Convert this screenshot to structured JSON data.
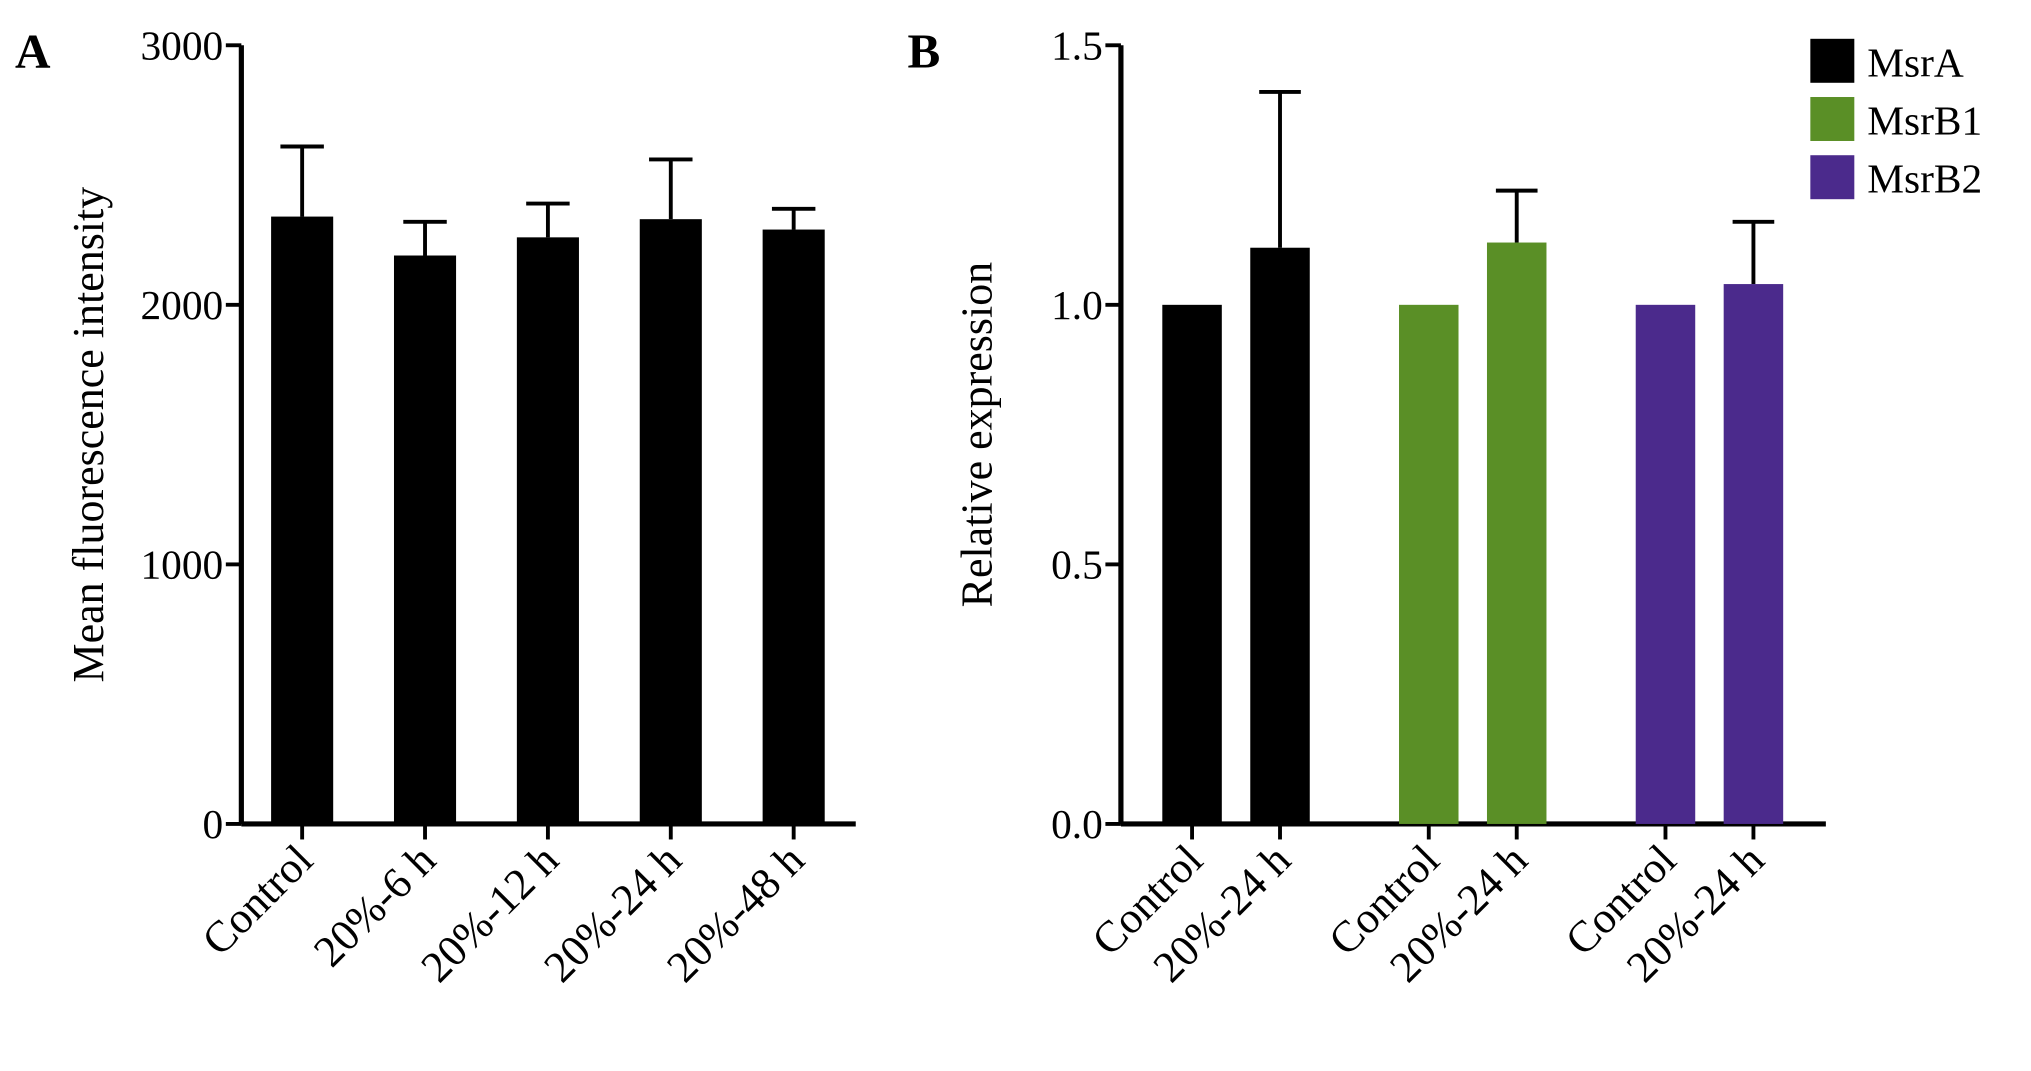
{
  "chart_data": [
    {
      "type": "bar",
      "panel": "A",
      "ylabel": "Mean fluorescence intensity",
      "categories": [
        "Control",
        "20%-6 h",
        "20%-12 h",
        "20%-24 h",
        "20%-48 h"
      ],
      "values": [
        2340,
        2190,
        2260,
        2330,
        2290
      ],
      "errors": [
        270,
        130,
        130,
        230,
        80
      ],
      "color": "#000000",
      "ylim": [
        0,
        3000
      ],
      "yticks": [
        0,
        1000,
        2000,
        3000
      ]
    },
    {
      "type": "grouped-bar",
      "panel": "B",
      "ylabel": "Relative expression",
      "categories": [
        "Control",
        "20%-24 h",
        "Control",
        "20%-24 h",
        "Control",
        "20%-24 h"
      ],
      "series": [
        {
          "name": "MsrA",
          "color": "#000000",
          "values": [
            1.0,
            1.11,
            null,
            null,
            null,
            null
          ],
          "errors": [
            null,
            0.3,
            null,
            null,
            null,
            null
          ]
        },
        {
          "name": "MsrB1",
          "color": "#5a8f26",
          "values": [
            null,
            null,
            1.0,
            1.12,
            null,
            null
          ],
          "errors": [
            null,
            null,
            null,
            0.1,
            null,
            null
          ]
        },
        {
          "name": "MsrB2",
          "color": "#4b2a8c",
          "values": [
            null,
            null,
            null,
            null,
            1.0,
            1.04
          ],
          "errors": [
            null,
            null,
            null,
            null,
            null,
            0.12
          ]
        }
      ],
      "ylim": [
        0,
        1.5
      ],
      "yticks": [
        {
          "value": 0,
          "label": "0.0"
        },
        {
          "value": 0.5,
          "label": "0.5"
        },
        {
          "value": 1,
          "label": "1.0"
        },
        {
          "value": 1.5,
          "label": "1.5"
        }
      ],
      "legend": "top-right"
    }
  ]
}
